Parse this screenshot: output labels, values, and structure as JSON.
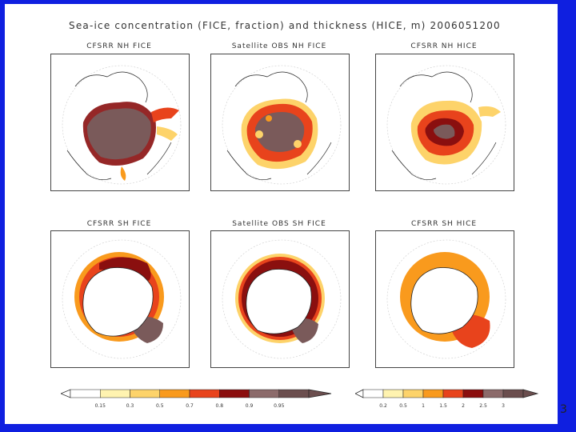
{
  "title": "Sea-ice concentration (FICE, fraction) and thickness (HICE, m) 2006051200",
  "panels": [
    {
      "label": "CFSRR NH FICE",
      "hemisphere": "north",
      "variable": "concentration"
    },
    {
      "label": "Satellite OBS NH FICE",
      "hemisphere": "north",
      "variable": "concentration"
    },
    {
      "label": "CFSRR NH HICE",
      "hemisphere": "north",
      "variable": "thickness"
    },
    {
      "label": "CFSRR SH FICE",
      "hemisphere": "south",
      "variable": "concentration"
    },
    {
      "label": "Satellite OBS SH FICE",
      "hemisphere": "south",
      "variable": "concentration"
    },
    {
      "label": "CFSRR SH HICE",
      "hemisphere": "south",
      "variable": "thickness"
    }
  ],
  "colorbars": {
    "concentration": {
      "ticks": [
        "0.15",
        "0.3",
        "0.5",
        "0.7",
        "0.8",
        "0.9",
        "0.95"
      ],
      "colors": [
        "#ffffff",
        "#fff3b0",
        "#fdd36a",
        "#f99a1d",
        "#e8431c",
        "#8b0e0e",
        "#8c6b6b",
        "#6b4e4e"
      ]
    },
    "thickness": {
      "ticks": [
        "0.2",
        "0.5",
        "1",
        "1.5",
        "2",
        "2.5",
        "3"
      ],
      "colors": [
        "#ffffff",
        "#fff3b0",
        "#fdd36a",
        "#f99a1d",
        "#e8431c",
        "#8b0e0e",
        "#8c6b6b",
        "#6b4e4e"
      ]
    }
  },
  "slide_number": "3"
}
